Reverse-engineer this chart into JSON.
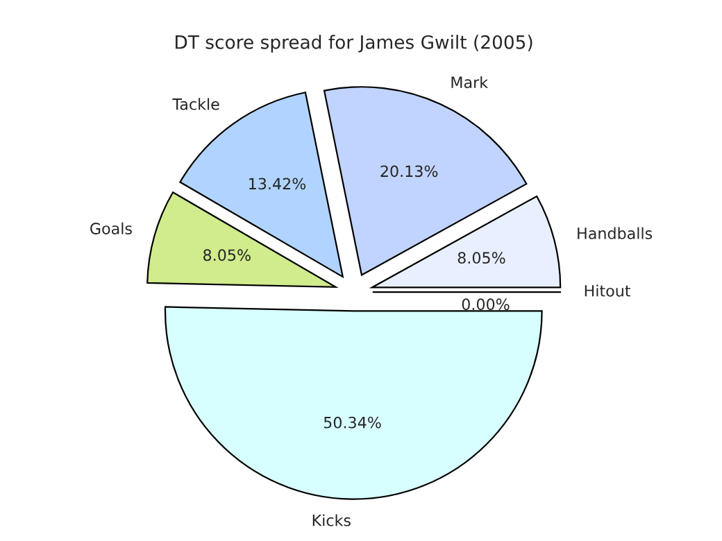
{
  "chart_data": {
    "type": "pie",
    "title": "DT score spread for James Gwilt (2005)",
    "categories": [
      "Handballs",
      "Mark",
      "Tackle",
      "Goals",
      "Kicks",
      "Hitout"
    ],
    "values": [
      8.05,
      20.13,
      13.42,
      8.05,
      50.34,
      0.0
    ],
    "value_labels": [
      "8.05%",
      "20.13%",
      "13.42%",
      "8.05%",
      "50.34%",
      "0.00%"
    ],
    "colors": [
      "#e8f0ff",
      "#c0d4ff",
      "#b0d4ff",
      "#d0ec8c",
      "#d8ffff",
      "#ffffff"
    ],
    "legend": false
  }
}
